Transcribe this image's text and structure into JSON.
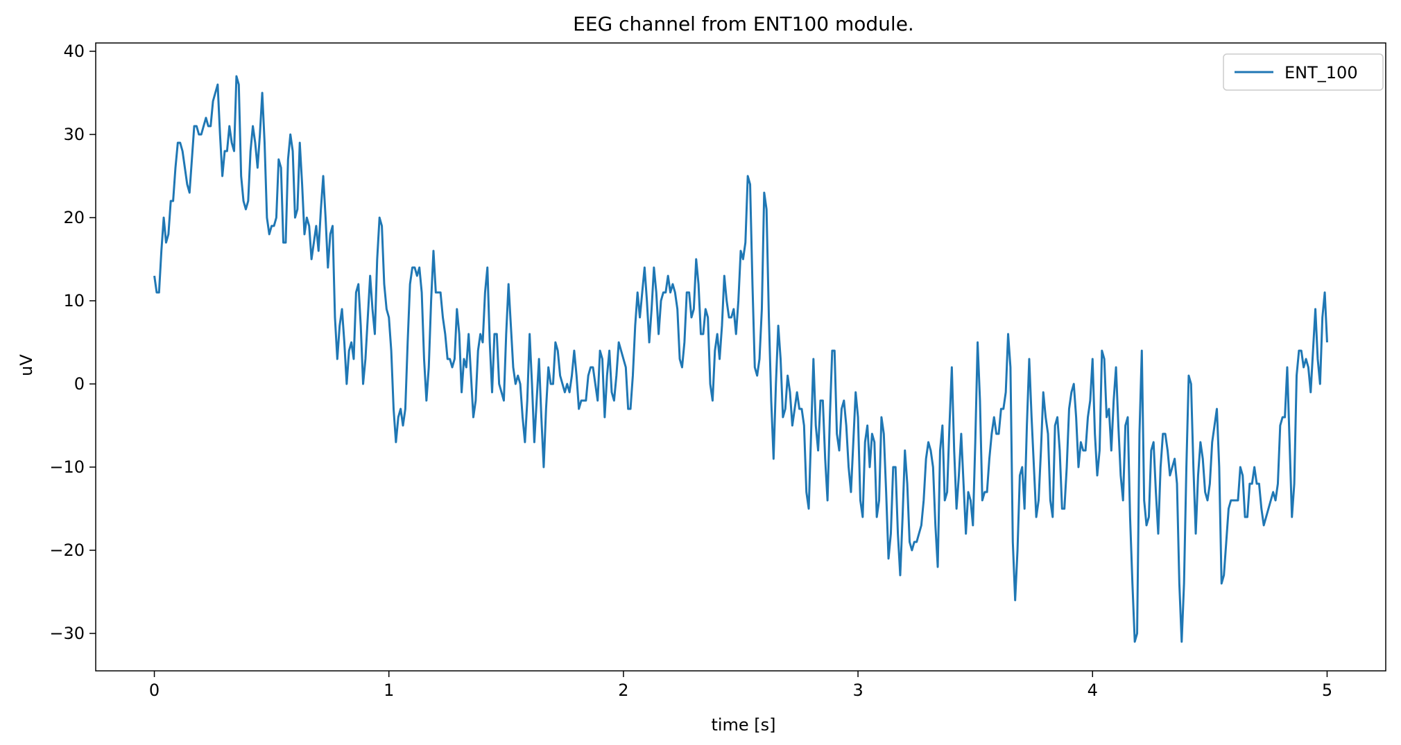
{
  "chart_data": {
    "type": "line",
    "title": "EEG channel from ENT100 module.",
    "xlabel": "time [s]",
    "ylabel": "uV",
    "xlim": [
      -0.25,
      5.25
    ],
    "ylim": [
      -34.5,
      41
    ],
    "xticks": [
      0,
      1,
      2,
      3,
      4,
      5
    ],
    "xtick_labels": [
      "0",
      "1",
      "2",
      "3",
      "4",
      "5"
    ],
    "yticks": [
      -30,
      -20,
      -10,
      0,
      10,
      20,
      30,
      40
    ],
    "ytick_labels": [
      "−30",
      "−20",
      "−10",
      "0",
      "10",
      "20",
      "30",
      "40"
    ],
    "grid": false,
    "legend_position": "top-right",
    "series": [
      {
        "name": "ENT_100",
        "color": "#1f77b4",
        "x_start": 0,
        "x_step": 0.01,
        "values": [
          13,
          11,
          11,
          16,
          20,
          17,
          18,
          22,
          22,
          26,
          29,
          29,
          28,
          26,
          24,
          23,
          27,
          31,
          31,
          30,
          30,
          31,
          32,
          31,
          31,
          34,
          35,
          36,
          30,
          25,
          28,
          28,
          31,
          29,
          28,
          37,
          36,
          25,
          22,
          21,
          22,
          28,
          31,
          29,
          26,
          30,
          35,
          29,
          20,
          18,
          19,
          19,
          20,
          27,
          26,
          17,
          17,
          27,
          30,
          28,
          20,
          21,
          29,
          24,
          18,
          20,
          19,
          15,
          17,
          19,
          16,
          21,
          25,
          20,
          14,
          18,
          19,
          8,
          3,
          7,
          9,
          5,
          0,
          4,
          5,
          3,
          11,
          12,
          7,
          0,
          3,
          8,
          13,
          9,
          6,
          15,
          20,
          19,
          12,
          9,
          8,
          4,
          -3,
          -7,
          -4,
          -3,
          -5,
          -3,
          5,
          12,
          14,
          14,
          13,
          14,
          11,
          3,
          -2,
          2,
          10,
          16,
          11,
          11,
          11,
          8,
          6,
          3,
          3,
          2,
          3,
          9,
          6,
          -1,
          3,
          2,
          6,
          1,
          -4,
          -2,
          4,
          6,
          5,
          11,
          14,
          5,
          -1,
          6,
          6,
          0,
          -1,
          -2,
          6,
          12,
          7,
          2,
          0,
          1,
          0,
          -4,
          -7,
          -2,
          6,
          0,
          -7,
          -2,
          3,
          -4,
          -10,
          -3,
          2,
          0,
          0,
          5,
          4,
          1,
          0,
          -1,
          0,
          -1,
          1,
          4,
          1,
          -3,
          -2,
          -2,
          -2,
          1,
          2,
          2,
          0,
          -2,
          4,
          3,
          -4,
          1,
          4,
          -1,
          -2,
          1,
          5,
          4,
          3,
          2,
          -3,
          -3,
          1,
          7,
          11,
          8,
          11,
          14,
          10,
          5,
          9,
          14,
          11,
          6,
          10,
          11,
          11,
          13,
          11,
          12,
          11,
          9,
          3,
          2,
          5,
          11,
          11,
          8,
          9,
          15,
          12,
          6,
          6,
          9,
          8,
          0,
          -2,
          4,
          6,
          3,
          7,
          13,
          10,
          8,
          8,
          9,
          6,
          10,
          16,
          15,
          17,
          25,
          24,
          12,
          2,
          1,
          3,
          9,
          23,
          21,
          8,
          -2,
          -9,
          0,
          7,
          3,
          -4,
          -3,
          1,
          -1,
          -5,
          -3,
          -1,
          -3,
          -3,
          -5,
          -13,
          -15,
          -6,
          3,
          -5,
          -8,
          -2,
          -2,
          -9,
          -14,
          -4,
          4,
          4,
          -6,
          -8,
          -3,
          -2,
          -5,
          -10,
          -13,
          -7,
          -1,
          -4,
          -14,
          -16,
          -7,
          -5,
          -10,
          -6,
          -7,
          -16,
          -14,
          -4,
          -6,
          -13,
          -21,
          -18,
          -10,
          -10,
          -18,
          -23,
          -16,
          -8,
          -12,
          -19,
          -20,
          -19,
          -19,
          -18,
          -17,
          -14,
          -9,
          -7,
          -8,
          -10,
          -17,
          -22,
          -8,
          -5,
          -14,
          -13,
          -5,
          2,
          -8,
          -15,
          -11,
          -6,
          -12,
          -18,
          -13,
          -14,
          -17,
          -7,
          5,
          -2,
          -14,
          -13,
          -13,
          -9,
          -6,
          -4,
          -6,
          -6,
          -3,
          -3,
          -1,
          6,
          2,
          -19,
          -26,
          -20,
          -11,
          -10,
          -15,
          -5,
          3,
          -4,
          -10,
          -16,
          -14,
          -8,
          -1,
          -4,
          -6,
          -14,
          -16,
          -5,
          -4,
          -8,
          -15,
          -15,
          -10,
          -3,
          -1,
          0,
          -4,
          -10,
          -7,
          -8,
          -8,
          -4,
          -2,
          3,
          -6,
          -11,
          -8,
          4,
          3,
          -4,
          -3,
          -8,
          -2,
          2,
          -5,
          -11,
          -14,
          -5,
          -4,
          -16,
          -24,
          -31,
          -30,
          -6,
          4,
          -14,
          -17,
          -16,
          -8,
          -7,
          -13,
          -18,
          -10,
          -6,
          -6,
          -8,
          -11,
          -10,
          -9,
          -12,
          -24,
          -31,
          -24,
          -10,
          1,
          0,
          -10,
          -18,
          -11,
          -7,
          -9,
          -13,
          -14,
          -12,
          -7,
          -5,
          -3,
          -10,
          -24,
          -23,
          -19,
          -15,
          -14,
          -14,
          -14,
          -14,
          -10,
          -11,
          -16,
          -16,
          -12,
          -12,
          -10,
          -12,
          -12,
          -15,
          -17,
          -16,
          -15,
          -14,
          -13,
          -14,
          -12,
          -5,
          -4,
          -4,
          2,
          -7,
          -16,
          -12,
          1,
          4,
          4,
          2,
          3,
          2,
          -1,
          4,
          9,
          3,
          0,
          8,
          11,
          5
        ]
      }
    ]
  }
}
